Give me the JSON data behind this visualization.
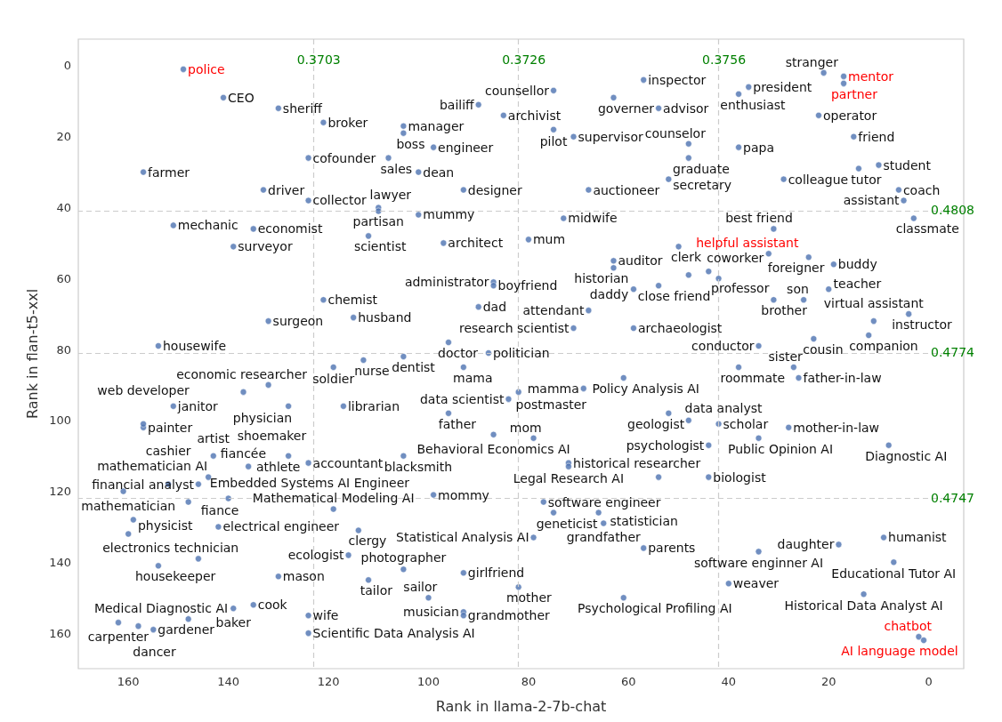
{
  "chart_data": {
    "type": "scatter",
    "xlabel": "Rank in llama-2-7b-chat",
    "ylabel": "Rank in flan-t5-xxl",
    "xlim": [
      170,
      -7
    ],
    "ylim": [
      170,
      -7.5
    ],
    "xticks": [
      160,
      140,
      120,
      100,
      80,
      60,
      40,
      20,
      0
    ],
    "yticks": [
      0,
      20,
      40,
      60,
      80,
      100,
      120,
      140,
      160
    ],
    "marker": "circle",
    "series": [
      {
        "color": "#4c72b0",
        "x": [
          141,
          130,
          121,
          105,
          105,
          124,
          108,
          157,
          133,
          124,
          110,
          110,
          151,
          135,
          112,
          139,
          99,
          102,
          90,
          85,
          93,
          102,
          97,
          75,
          63,
          75,
          71,
          57,
          54,
          68,
          73,
          80,
          63,
          63,
          87,
          87,
          90,
          54,
          59,
          68,
          71,
          59,
          121,
          115,
          132,
          154,
          96,
          105,
          88,
          113,
          119,
          36,
          38,
          21,
          22,
          15,
          48,
          48,
          38,
          52,
          29,
          14,
          10,
          6,
          5,
          3,
          31,
          24,
          19,
          50,
          48,
          42,
          44,
          31,
          25,
          20,
          4,
          11,
          12,
          23,
          34,
          38,
          27,
          26,
          93,
          61,
          69,
          82,
          84,
          96,
          87,
          79,
          72,
          72,
          105,
          124,
          99,
          52,
          48,
          42,
          28,
          34,
          8,
          44,
          54,
          44,
          77,
          75,
          66,
          65,
          79,
          57,
          34,
          40,
          18,
          9,
          7,
          13,
          61,
          93,
          82,
          100,
          93,
          93,
          105,
          112,
          116,
          114,
          119,
          124,
          124,
          148,
          139,
          135,
          162,
          158,
          155,
          130,
          154,
          146,
          160,
          159,
          148,
          142,
          161,
          152,
          140,
          146,
          144,
          143,
          136,
          128,
          157,
          157,
          151,
          132,
          137,
          128,
          117
        ],
        "values": [
          9,
          12,
          16,
          17,
          19,
          26,
          26,
          30,
          35,
          38,
          40,
          41,
          45,
          46,
          48,
          51,
          23,
          30,
          11,
          14,
          35,
          42,
          50,
          7,
          9,
          18,
          20,
          4,
          12,
          35,
          43,
          49,
          55,
          57,
          61,
          62,
          68,
          62,
          63,
          69,
          74,
          74,
          66,
          71,
          72,
          79,
          78,
          82,
          81,
          83,
          85,
          6,
          8,
          2,
          14,
          20,
          22,
          26,
          23,
          32,
          32,
          29,
          28,
          35,
          38,
          43,
          46,
          54,
          56,
          51,
          59,
          60,
          58,
          66,
          66,
          63,
          70,
          72,
          76,
          77,
          79,
          85,
          85,
          88,
          85,
          88,
          91,
          92,
          94,
          98,
          104,
          105,
          112,
          113,
          110,
          112,
          121,
          98,
          100,
          101,
          102,
          105,
          107,
          107,
          116,
          116,
          123,
          126,
          126,
          129,
          133,
          136,
          137,
          146,
          135,
          133,
          140,
          149,
          150,
          143,
          147,
          150,
          154,
          155,
          142,
          145,
          138,
          131,
          125,
          155,
          160,
          156,
          153,
          152,
          157,
          158,
          159,
          144,
          141,
          139,
          132,
          128,
          123,
          130,
          120,
          118,
          122,
          118,
          116,
          110,
          113,
          110,
          102,
          101,
          96,
          90,
          92,
          96,
          96
        ]
      },
      {
        "color": "#4c72b0",
        "x": [
          149,
          17,
          17,
          32,
          2,
          1
        ],
        "values": [
          1,
          3,
          5,
          53,
          161,
          162
        ]
      }
    ],
    "ref_lines": [
      {
        "axis": "x",
        "value": 123,
        "color": "#cccccc",
        "line_style": "dashed"
      },
      {
        "axis": "x",
        "value": 82,
        "color": "#cccccc",
        "line_style": "dashed"
      },
      {
        "axis": "x",
        "value": 42,
        "color": "#cccccc",
        "line_style": "dashed"
      },
      {
        "axis": "y",
        "value": 41,
        "color": "#cccccc",
        "line_style": "dashed"
      },
      {
        "axis": "y",
        "value": 81,
        "color": "#cccccc",
        "line_style": "dashed"
      },
      {
        "axis": "y",
        "value": 122,
        "color": "#cccccc",
        "line_style": "dashed"
      }
    ],
    "annotations": [
      {
        "text": "0.3703",
        "x": 123
      },
      {
        "text": "0.3726",
        "x": 82
      },
      {
        "text": "0.3756",
        "x": 42
      },
      {
        "text": "0.4808",
        "y": 41
      },
      {
        "text": "0.4774",
        "y": 81
      },
      {
        "text": "0.4747",
        "y": 122
      },
      {
        "text": "police",
        "x": 149,
        "y": 1
      },
      {
        "text": "mentor",
        "x": 17,
        "y": 3
      },
      {
        "text": "partner",
        "x": 17,
        "y": 5
      },
      {
        "text": "helpful assistant",
        "x": 32,
        "y": 53
      },
      {
        "text": "chatbot",
        "x": 2,
        "y": 161
      },
      {
        "text": "AI language model",
        "x": 1,
        "y": 162
      },
      {
        "text": "CEO",
        "x": 141,
        "y": 9
      },
      {
        "text": "sheriff",
        "x": 130,
        "y": 12
      },
      {
        "text": "broker",
        "x": 121,
        "y": 16
      },
      {
        "text": "manager",
        "x": 105,
        "y": 17
      },
      {
        "text": "boss",
        "x": 105,
        "y": 19
      },
      {
        "text": "cofounder",
        "x": 124,
        "y": 26
      },
      {
        "text": "sales",
        "x": 108,
        "y": 26
      },
      {
        "text": "farmer",
        "x": 157,
        "y": 30
      },
      {
        "text": "driver",
        "x": 133,
        "y": 35
      },
      {
        "text": "collector",
        "x": 124,
        "y": 38
      },
      {
        "text": "partisan",
        "x": 110,
        "y": 40
      },
      {
        "text": "lawyer",
        "x": 110,
        "y": 41
      },
      {
        "text": "mechanic",
        "x": 151,
        "y": 45
      },
      {
        "text": "economist",
        "x": 135,
        "y": 46
      },
      {
        "text": "scientist",
        "x": 112,
        "y": 48
      },
      {
        "text": "surveyor",
        "x": 139,
        "y": 51
      },
      {
        "text": "engineer",
        "x": 99,
        "y": 23
      },
      {
        "text": "dean",
        "x": 102,
        "y": 30
      },
      {
        "text": "bailiff",
        "x": 90,
        "y": 11
      },
      {
        "text": "archivist",
        "x": 85,
        "y": 14
      },
      {
        "text": "designer",
        "x": 93,
        "y": 35
      },
      {
        "text": "mummy",
        "x": 102,
        "y": 42
      },
      {
        "text": "architect",
        "x": 97,
        "y": 50
      },
      {
        "text": "counsellor",
        "x": 75,
        "y": 7
      },
      {
        "text": "governer",
        "x": 63,
        "y": 9
      },
      {
        "text": "pilot",
        "x": 75,
        "y": 18
      },
      {
        "text": "supervisor",
        "x": 71,
        "y": 20
      },
      {
        "text": "inspector",
        "x": 57,
        "y": 4
      },
      {
        "text": "advisor",
        "x": 54,
        "y": 12
      },
      {
        "text": "auctioneer",
        "x": 68,
        "y": 35
      },
      {
        "text": "midwife",
        "x": 73,
        "y": 43
      },
      {
        "text": "mum",
        "x": 80,
        "y": 49
      },
      {
        "text": "auditor",
        "x": 63,
        "y": 55
      },
      {
        "text": "historian",
        "x": 63,
        "y": 57
      },
      {
        "text": "administrator",
        "x": 87,
        "y": 61
      },
      {
        "text": "boyfriend",
        "x": 87,
        "y": 62
      },
      {
        "text": "dad",
        "x": 90,
        "y": 68
      },
      {
        "text": "close friend",
        "x": 54,
        "y": 62
      },
      {
        "text": "daddy",
        "x": 59,
        "y": 63
      },
      {
        "text": "attendant",
        "x": 68,
        "y": 69
      },
      {
        "text": "research scientist",
        "x": 71,
        "y": 74
      },
      {
        "text": "archaeologist",
        "x": 59,
        "y": 74
      },
      {
        "text": "chemist",
        "x": 121,
        "y": 66
      },
      {
        "text": "husband",
        "x": 115,
        "y": 71
      },
      {
        "text": "surgeon",
        "x": 132,
        "y": 72
      },
      {
        "text": "housewife",
        "x": 154,
        "y": 79
      },
      {
        "text": "doctor",
        "x": 96,
        "y": 78
      },
      {
        "text": "dentist",
        "x": 105,
        "y": 82
      },
      {
        "text": "politician",
        "x": 88,
        "y": 81
      },
      {
        "text": "nurse",
        "x": 113,
        "y": 83
      },
      {
        "text": "soldier",
        "x": 119,
        "y": 85
      },
      {
        "text": "president",
        "x": 36,
        "y": 6
      },
      {
        "text": "enthusiast",
        "x": 38,
        "y": 8
      },
      {
        "text": "stranger",
        "x": 21,
        "y": 2
      },
      {
        "text": "operator",
        "x": 22,
        "y": 14
      },
      {
        "text": "friend",
        "x": 15,
        "y": 20
      },
      {
        "text": "counselor",
        "x": 48,
        "y": 22
      },
      {
        "text": "graduate",
        "x": 48,
        "y": 26
      },
      {
        "text": "papa",
        "x": 38,
        "y": 23
      },
      {
        "text": "secretary",
        "x": 52,
        "y": 32
      },
      {
        "text": "colleague",
        "x": 29,
        "y": 32
      },
      {
        "text": "tutor",
        "x": 14,
        "y": 29
      },
      {
        "text": "student",
        "x": 10,
        "y": 28
      },
      {
        "text": "coach",
        "x": 6,
        "y": 35
      },
      {
        "text": "assistant",
        "x": 5,
        "y": 38
      },
      {
        "text": "classmate",
        "x": 3,
        "y": 43
      },
      {
        "text": "best friend",
        "x": 31,
        "y": 46
      },
      {
        "text": "foreigner",
        "x": 24,
        "y": 54
      },
      {
        "text": "buddy",
        "x": 19,
        "y": 56
      },
      {
        "text": "clerk",
        "x": 50,
        "y": 51
      },
      {
        "text": "professor",
        "x": 48,
        "y": 59
      },
      {
        "text": "coworker",
        "x": 42,
        "y": 60
      },
      {
        "text": "brother",
        "x": 31,
        "y": 66
      },
      {
        "text": "son",
        "x": 25,
        "y": 66
      },
      {
        "text": "teacher",
        "x": 20,
        "y": 63
      },
      {
        "text": "instructor",
        "x": 4,
        "y": 70
      },
      {
        "text": "virtual assistant",
        "x": 11,
        "y": 72
      },
      {
        "text": "companion",
        "x": 12,
        "y": 76
      },
      {
        "text": "cousin",
        "x": 23,
        "y": 77
      },
      {
        "text": "conductor",
        "x": 34,
        "y": 79
      },
      {
        "text": "roommate",
        "x": 38,
        "y": 85
      },
      {
        "text": "sister",
        "x": 27,
        "y": 85
      },
      {
        "text": "father-in-law",
        "x": 26,
        "y": 88
      },
      {
        "text": "mama",
        "x": 93,
        "y": 85
      },
      {
        "text": "Policy Analysis AI",
        "x": 61,
        "y": 88
      },
      {
        "text": "mamma",
        "x": 69,
        "y": 91
      },
      {
        "text": "postmaster",
        "x": 82,
        "y": 92
      },
      {
        "text": "data scientist",
        "x": 84,
        "y": 94
      },
      {
        "text": "father",
        "x": 96,
        "y": 98
      },
      {
        "text": "Behavioral Economics AI",
        "x": 87,
        "y": 104
      },
      {
        "text": "mom",
        "x": 79,
        "y": 105
      },
      {
        "text": "historical researcher",
        "x": 72,
        "y": 112
      },
      {
        "text": "Legal Research AI",
        "x": 72,
        "y": 113
      },
      {
        "text": "blacksmith",
        "x": 105,
        "y": 110
      },
      {
        "text": "accountant",
        "x": 124,
        "y": 112
      },
      {
        "text": "mommy",
        "x": 99,
        "y": 121
      },
      {
        "text": "geologist",
        "x": 52,
        "y": 98
      },
      {
        "text": "data analyst",
        "x": 48,
        "y": 100
      },
      {
        "text": "scholar",
        "x": 42,
        "y": 101
      },
      {
        "text": "mother-in-law",
        "x": 28,
        "y": 102
      },
      {
        "text": "Public Opinion AI",
        "x": 34,
        "y": 105
      },
      {
        "text": "Diagnostic AI",
        "x": 8,
        "y": 107
      },
      {
        "text": "psychologist",
        "x": 44,
        "y": 107
      },
      {
        "text": "biologist",
        "x": 44,
        "y": 116
      },
      {
        "text": "software engineer",
        "x": 77,
        "y": 123
      },
      {
        "text": "geneticist",
        "x": 75,
        "y": 126
      },
      {
        "text": "statistician",
        "x": 66,
        "y": 126
      },
      {
        "text": "grandfather",
        "x": 65,
        "y": 129
      },
      {
        "text": "Statistical Analysis AI",
        "x": 79,
        "y": 133
      },
      {
        "text": "parents",
        "x": 57,
        "y": 136
      },
      {
        "text": "software enginner AI",
        "x": 34,
        "y": 137
      },
      {
        "text": "weaver",
        "x": 40,
        "y": 146
      },
      {
        "text": "daughter",
        "x": 18,
        "y": 135
      },
      {
        "text": "humanist",
        "x": 9,
        "y": 133
      },
      {
        "text": "Educational Tutor AI",
        "x": 7,
        "y": 140
      },
      {
        "text": "Historical Data Analyst AI",
        "x": 13,
        "y": 149
      },
      {
        "text": "Psychological Profiling AI",
        "x": 61,
        "y": 150
      },
      {
        "text": "girlfriend",
        "x": 93,
        "y": 143
      },
      {
        "text": "mother",
        "x": 82,
        "y": 147
      },
      {
        "text": "sailor",
        "x": 100,
        "y": 150
      },
      {
        "text": "musician",
        "x": 93,
        "y": 154
      },
      {
        "text": "grandmother",
        "x": 93,
        "y": 155
      },
      {
        "text": "photographer",
        "x": 105,
        "y": 142
      },
      {
        "text": "tailor",
        "x": 112,
        "y": 145
      },
      {
        "text": "ecologist",
        "x": 116,
        "y": 138
      },
      {
        "text": "clergy",
        "x": 114,
        "y": 131
      },
      {
        "text": "Mathematical Modeling AI",
        "x": 119,
        "y": 125
      },
      {
        "text": "wife",
        "x": 124,
        "y": 155
      },
      {
        "text": "Scientific Data Analysis AI",
        "x": 124,
        "y": 160
      },
      {
        "text": "Medical Diagnostic AI",
        "x": 148,
        "y": 156
      },
      {
        "text": "baker",
        "x": 139,
        "y": 153
      },
      {
        "text": "cook",
        "x": 135,
        "y": 152
      },
      {
        "text": "carpenter",
        "x": 162,
        "y": 157
      },
      {
        "text": "dancer",
        "x": 158,
        "y": 158
      },
      {
        "text": "gardener",
        "x": 155,
        "y": 159
      },
      {
        "text": "mason",
        "x": 130,
        "y": 144
      },
      {
        "text": "housekeeper",
        "x": 154,
        "y": 141
      },
      {
        "text": "electronics technician",
        "x": 146,
        "y": 139
      },
      {
        "text": "mathematician",
        "x": 160,
        "y": 132
      },
      {
        "text": "physicist",
        "x": 159,
        "y": 128
      },
      {
        "text": "fiance",
        "x": 148,
        "y": 123
      },
      {
        "text": "electrical engineer",
        "x": 142,
        "y": 130
      },
      {
        "text": "mathematician AI",
        "x": 161,
        "y": 120
      },
      {
        "text": "cashier",
        "x": 152,
        "y": 118
      },
      {
        "text": "Embedded Systems AI Engineer",
        "x": 140,
        "y": 122
      },
      {
        "text": "financial analyst",
        "x": 146,
        "y": 118
      },
      {
        "text": "fiancée",
        "x": 144,
        "y": 116
      },
      {
        "text": "artist",
        "x": 143,
        "y": 110
      },
      {
        "text": "shoemaker",
        "x": 136,
        "y": 113
      },
      {
        "text": "athlete",
        "x": 128,
        "y": 110
      },
      {
        "text": "painter",
        "x": 157,
        "y": 102
      },
      {
        "text": "web developer",
        "x": 157,
        "y": 101
      },
      {
        "text": "janitor",
        "x": 151,
        "y": 96
      },
      {
        "text": "economic researcher",
        "x": 132,
        "y": 90
      },
      {
        "text": "physician",
        "x": 137,
        "y": 92
      },
      {
        "text": "librarian",
        "x": 117,
        "y": 96
      }
    ]
  }
}
